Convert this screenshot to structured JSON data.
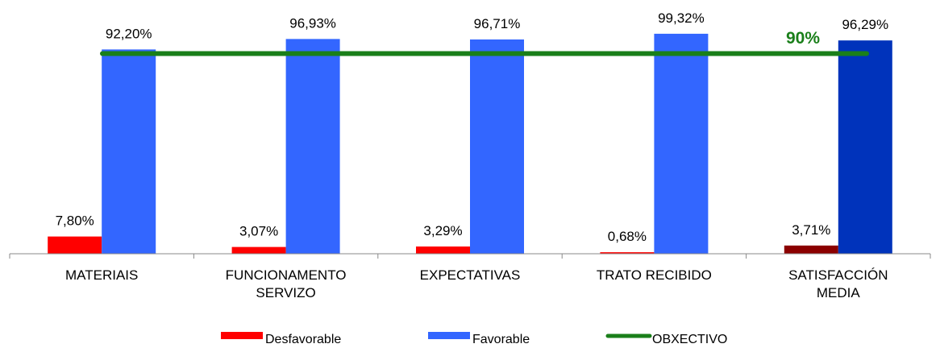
{
  "chart_data": {
    "type": "bar",
    "categories": [
      [
        "MATERIAIS"
      ],
      [
        "FUNCIONAMENTO",
        "SERVIZO"
      ],
      [
        "EXPECTATIVAS"
      ],
      [
        "TRATO RECIBIDO"
      ],
      [
        "SATISFACCIÓN",
        "MEDIA"
      ]
    ],
    "series": [
      {
        "name": "Desfavorable",
        "values": [
          7.8,
          3.07,
          3.29,
          0.68,
          3.71
        ],
        "labels": [
          "7,80%",
          "3,07%",
          "3,29%",
          "0,68%",
          "3,71%"
        ],
        "color": "#ff0000",
        "highlight_color": "#8b0000"
      },
      {
        "name": "Favorable",
        "values": [
          92.2,
          96.93,
          96.71,
          99.32,
          96.29
        ],
        "labels": [
          "92,20%",
          "96,93%",
          "96,71%",
          "99,32%",
          "96,29%"
        ],
        "color": "#3366ff",
        "highlight_color": "#0033bb"
      }
    ],
    "highlight_category_index": 4,
    "reference_line": {
      "name": "OBXECTIVO",
      "value": 90,
      "label": "90%",
      "color": "#1a7f1a"
    },
    "ylim": [
      0,
      100
    ],
    "grid": false,
    "legend_position": "bottom-center"
  }
}
